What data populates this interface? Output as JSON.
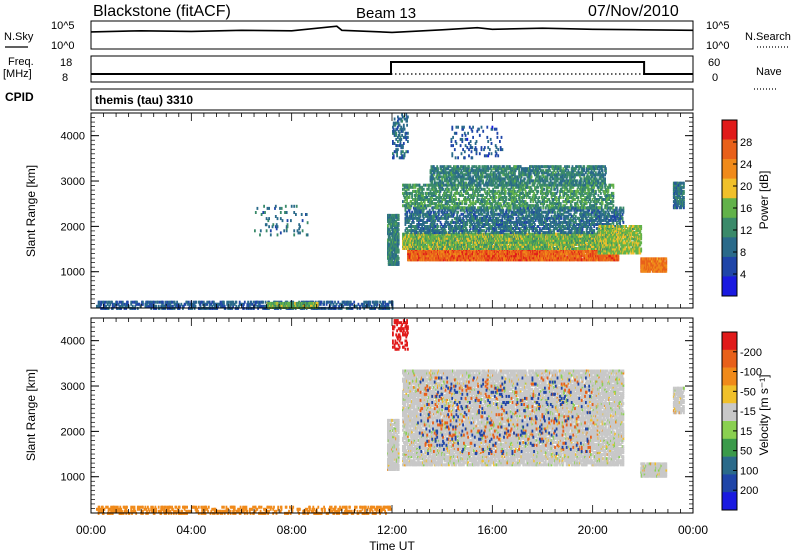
{
  "header": {
    "station": "Blackstone (fitACF)",
    "beam": "Beam 13",
    "date": "07/Nov/2010"
  },
  "top_panels": {
    "nsky_label": "N.Sky",
    "nsky_ticks": [
      "10^5",
      "10^0"
    ],
    "nsearch_label": "N.Search",
    "nsearch_ticks": [
      "10^5",
      "10^0"
    ],
    "freq_label": [
      "Freq.",
      "[MHz]"
    ],
    "freq_ticks": [
      "18",
      "8"
    ],
    "nave_label": "Nave",
    "nave_ticks": [
      "60",
      "0"
    ],
    "cpid_label": "CPID",
    "cpid_value": "themis (tau) 3310"
  },
  "colors": {
    "power_scale": [
      "#1a1ae0",
      "#1f45a8",
      "#2a6a8a",
      "#3a8a6a",
      "#62b24a",
      "#f0c02a",
      "#f08a1a",
      "#e8601a",
      "#e01a1a"
    ],
    "velocity_scale": [
      "#1a1ae0",
      "#1f45a8",
      "#2a6a8a",
      "#3a9a4a",
      "#8ad050",
      "#c8c8c8",
      "#f0c02a",
      "#f08a1a",
      "#e8601a",
      "#e01a1a"
    ]
  },
  "chart_data": [
    {
      "type": "line",
      "name": "N.Sky / N.Search",
      "x": [
        0,
        2,
        4,
        6,
        8,
        9.8,
        10,
        12,
        14,
        15.4,
        16,
        18,
        20,
        22,
        24
      ],
      "y_log10": [
        3.1,
        3.3,
        3.2,
        3.4,
        3.3,
        4.2,
        3.4,
        3.0,
        3.5,
        3.9,
        3.6,
        3.8,
        3.6,
        3.5,
        3.4
      ],
      "ylabel": "N.Sky",
      "y2label": "N.Search",
      "yticks": [
        "10^0",
        "10^5"
      ]
    },
    {
      "type": "line",
      "series": [
        {
          "name": "Freq.",
          "x": [
            0,
            11.96,
            11.96,
            22.05,
            22.05,
            24
          ],
          "y": [
            10.5,
            10.5,
            16.5,
            16.5,
            10.5,
            10.5
          ]
        },
        {
          "name": "Nave",
          "x": [
            0,
            24
          ],
          "y": [
            15,
            15
          ]
        }
      ],
      "ylabel": "Freq. [MHz]",
      "yticks": [
        8,
        18
      ],
      "y2label": "Nave",
      "y2ticks": [
        0,
        60
      ]
    },
    {
      "type": "heatmap",
      "title": "",
      "xlabel": "",
      "ylabel": "Slant Range [km]",
      "xlim": [
        0,
        24
      ],
      "ylim": [
        200,
        4500
      ],
      "yticks": [
        1000,
        2000,
        3000,
        4000
      ],
      "colorbar_label": "Power [dB]",
      "colorbar_ticks": [
        "4",
        "8",
        "12",
        "16",
        "20",
        "24",
        "28"
      ],
      "clim": [
        0,
        30
      ],
      "regions": [
        {
          "t": [
            0.2,
            12.0
          ],
          "r": [
            180,
            320
          ],
          "value": 6,
          "density": 0.45
        },
        {
          "t": [
            7.0,
            9.0
          ],
          "r": [
            200,
            300
          ],
          "value": 14,
          "density": 0.95
        },
        {
          "t": [
            6.5,
            8.6
          ],
          "r": [
            1800,
            2450
          ],
          "value": 8,
          "density": 0.08
        },
        {
          "t": [
            11.8,
            12.25
          ],
          "r": [
            1150,
            2250
          ],
          "value": 10,
          "density": 0.8
        },
        {
          "t": [
            12.0,
            12.6
          ],
          "r": [
            3500,
            4450
          ],
          "value": 7,
          "density": 0.25
        },
        {
          "t": [
            12.6,
            21.0
          ],
          "r": [
            1250,
            1500
          ],
          "value": 26,
          "density": 0.95
        },
        {
          "t": [
            12.4,
            21.0
          ],
          "r": [
            1500,
            1850
          ],
          "value": 15,
          "density": 0.9
        },
        {
          "t": [
            12.5,
            21.2
          ],
          "r": [
            1850,
            2400
          ],
          "value": 8,
          "density": 0.5
        },
        {
          "t": [
            12.4,
            20.8
          ],
          "r": [
            2400,
            2900
          ],
          "value": 12,
          "density": 0.45
        },
        {
          "t": [
            13.5,
            20.5
          ],
          "r": [
            2900,
            3350
          ],
          "value": 10,
          "density": 0.55
        },
        {
          "t": [
            14.3,
            16.4
          ],
          "r": [
            3500,
            4200
          ],
          "value": 5,
          "density": 0.1
        },
        {
          "t": [
            20.2,
            21.9
          ],
          "r": [
            1400,
            2000
          ],
          "value": 16,
          "density": 0.7
        },
        {
          "t": [
            21.9,
            22.9
          ],
          "r": [
            1000,
            1300
          ],
          "value": 24,
          "density": 0.9
        },
        {
          "t": [
            23.2,
            23.6
          ],
          "r": [
            2400,
            2950
          ],
          "value": 8,
          "density": 0.7
        }
      ]
    },
    {
      "type": "heatmap",
      "title": "",
      "xlabel": "Time UT",
      "ylabel": "Slant Range [km]",
      "xlim": [
        0,
        24
      ],
      "ylim": [
        200,
        4500
      ],
      "xticks": [
        "00:00",
        "04:00",
        "08:00",
        "12:00",
        "16:00",
        "20:00",
        "00:00"
      ],
      "yticks": [
        1000,
        2000,
        3000,
        4000
      ],
      "colorbar_label": "Velocity [m s⁻¹]",
      "colorbar_ticks": [
        "-200",
        "-100",
        "-50",
        "-15",
        "15",
        "50",
        "100",
        "200"
      ],
      "regions": [
        {
          "t": [
            0.2,
            12.0
          ],
          "r": [
            180,
            320
          ],
          "value": "-50",
          "density": 0.35
        },
        {
          "t": [
            11.8,
            12.25
          ],
          "r": [
            1150,
            2250
          ],
          "value": "0",
          "density": 0.8
        },
        {
          "t": [
            12.0,
            12.6
          ],
          "r": [
            3800,
            4450
          ],
          "value": "-200",
          "density": 0.3
        },
        {
          "t": [
            12.4,
            21.2
          ],
          "r": [
            1250,
            3350
          ],
          "value": "0",
          "density": 0.7
        },
        {
          "t": [
            21.9,
            22.9
          ],
          "r": [
            1000,
            1300
          ],
          "value": "0",
          "density": 0.9
        },
        {
          "t": [
            23.2,
            23.6
          ],
          "r": [
            2400,
            2950
          ],
          "value": "0",
          "density": 0.7
        },
        {
          "t": [
            13.0,
            20.0
          ],
          "r": [
            1500,
            3200
          ],
          "value": "-100",
          "density": 0.03
        },
        {
          "t": [
            13.0,
            20.0
          ],
          "r": [
            1500,
            3200
          ],
          "value": "100",
          "density": 0.03
        }
      ]
    }
  ]
}
